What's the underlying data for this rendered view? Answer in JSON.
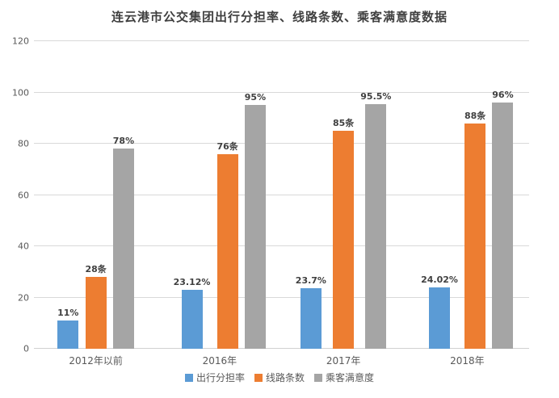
{
  "chart_data": {
    "type": "bar",
    "title": "连云港市公交集团出行分担率、线路条数、乘客满意度数据",
    "categories": [
      "2012年以前",
      "2016年",
      "2017年",
      "2018年"
    ],
    "series": [
      {
        "name": "出行分担率",
        "color": "#5b9bd5",
        "values": [
          11,
          23.12,
          23.7,
          24.02
        ],
        "labels": [
          "11%",
          "23.12%",
          "23.7%",
          "24.02%"
        ]
      },
      {
        "name": "线路条数",
        "color": "#ed7d31",
        "values": [
          28,
          76,
          85,
          88
        ],
        "labels": [
          "28条",
          "76条",
          "85条",
          "88条"
        ]
      },
      {
        "name": "乘客满意度",
        "color": "#a5a5a5",
        "values": [
          78,
          95,
          95.5,
          96
        ],
        "labels": [
          "78%",
          "95%",
          "95.5%",
          "96%"
        ]
      }
    ],
    "ylim": [
      0,
      120
    ],
    "yticks": [
      0,
      20,
      40,
      60,
      80,
      100,
      120
    ],
    "grid": true,
    "gridline_color": "#d9d9d9",
    "legend_position": "bottom"
  }
}
